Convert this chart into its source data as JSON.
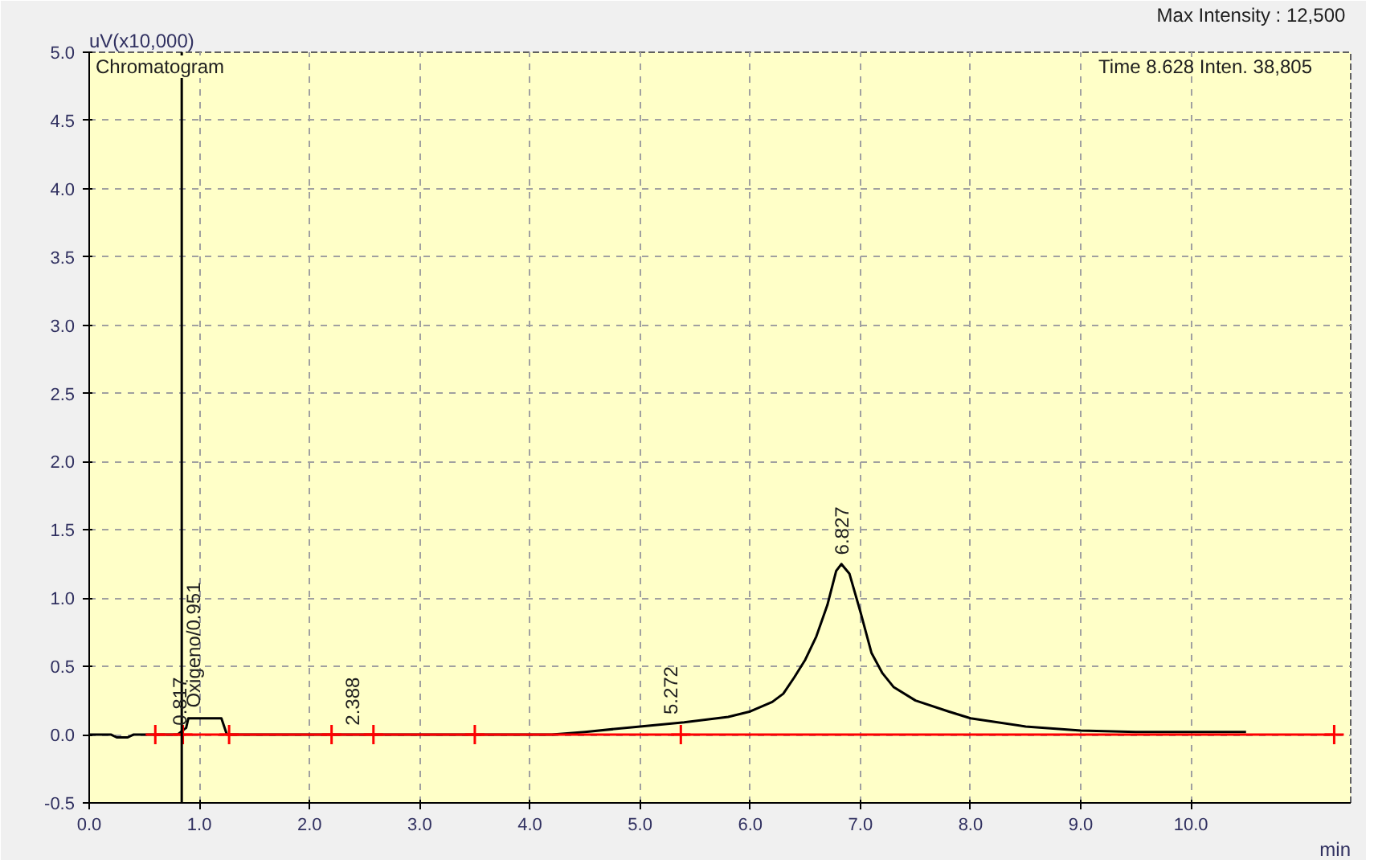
{
  "chart_data": {
    "type": "line",
    "xlabel": "min",
    "ylabel": "uV(x10,000)",
    "xlim": [
      0,
      11.45
    ],
    "ylim": [
      -0.5,
      5.0
    ],
    "xticks": [
      {
        "value": 0,
        "label": "0.0"
      },
      {
        "value": 1,
        "label": "1.0"
      },
      {
        "value": 2,
        "label": "2.0"
      },
      {
        "value": 3,
        "label": "3.0"
      },
      {
        "value": 4,
        "label": "4.0"
      },
      {
        "value": 5,
        "label": "5.0"
      },
      {
        "value": 6,
        "label": "6.0"
      },
      {
        "value": 7,
        "label": "7.0"
      },
      {
        "value": 8,
        "label": "8.0"
      },
      {
        "value": 9,
        "label": "9.0"
      },
      {
        "value": 10,
        "label": "10.0"
      }
    ],
    "yticks": [
      {
        "value": -0.5,
        "label": "-0.5"
      },
      {
        "value": 0,
        "label": "0.0"
      },
      {
        "value": 0.5,
        "label": "0.5"
      },
      {
        "value": 1,
        "label": "1.0"
      },
      {
        "value": 1.5,
        "label": "1.5"
      },
      {
        "value": 2,
        "label": "2.0"
      },
      {
        "value": 2.5,
        "label": "2.5"
      },
      {
        "value": 3,
        "label": "3.0"
      },
      {
        "value": 3.5,
        "label": "3.5"
      },
      {
        "value": 4,
        "label": "4.0"
      },
      {
        "value": 4.5,
        "label": "4.5"
      },
      {
        "value": 5,
        "label": "5.0"
      }
    ],
    "grid": true,
    "marker": "none",
    "line_style": "solid",
    "series": [
      {
        "color": "#000000",
        "x": [
          0,
          0.2,
          0.25,
          0.35,
          0.4,
          0.8,
          0.88,
          0.9,
          0.95,
          1.2,
          1.25,
          2.0,
          3.0,
          4.2,
          4.5,
          5.0,
          5.4,
          5.8,
          6.0,
          6.2,
          6.3,
          6.4,
          6.5,
          6.6,
          6.7,
          6.78,
          6.827,
          6.9,
          7.0,
          7.1,
          7.2,
          7.3,
          7.5,
          7.8,
          8.0,
          8.5,
          9.0,
          9.5,
          10.0,
          10.5
        ],
        "values": [
          0,
          0,
          -0.02,
          -0.02,
          0,
          0,
          0.05,
          0.12,
          0.12,
          0.12,
          0,
          0,
          0,
          0,
          0.02,
          0.06,
          0.09,
          0.13,
          0.17,
          0.24,
          0.3,
          0.42,
          0.55,
          0.72,
          0.95,
          1.2,
          1.25,
          1.18,
          0.9,
          0.6,
          0.45,
          0.35,
          0.25,
          0.17,
          0.12,
          0.06,
          0.03,
          0.02,
          0.02,
          0.02
        ]
      },
      {
        "color": "#ff0000",
        "x": [
          0.6,
          11.3
        ],
        "values": [
          0,
          0
        ]
      },
      {
        "type": "scatter",
        "marker": "cross",
        "color": "#ff0000",
        "x": [
          0.6,
          0.85,
          1.27,
          2.2,
          2.58,
          3.5,
          5.37,
          11.3
        ],
        "values": [
          0,
          0,
          0,
          0,
          0,
          0,
          0,
          0
        ]
      }
    ],
    "ref_lines": [
      {
        "axis": "x",
        "value": 0.84,
        "color": "#000000"
      }
    ],
    "annotations": [
      "Chromatogram",
      "Max Intensity :  12,500",
      "Time   8.628   Inten.   38,805",
      {
        "text": "0.817",
        "x": 0.817,
        "y": 0.02
      },
      {
        "text": "Oxigeno/0.951",
        "x": 0.951,
        "y": 0.15
      },
      {
        "text": "2.388",
        "x": 2.388,
        "y": 0.02
      },
      {
        "text": "5.272",
        "x": 5.272,
        "y": 0.1
      },
      {
        "text": "6.827",
        "x": 6.827,
        "y": 1.27
      }
    ]
  }
}
